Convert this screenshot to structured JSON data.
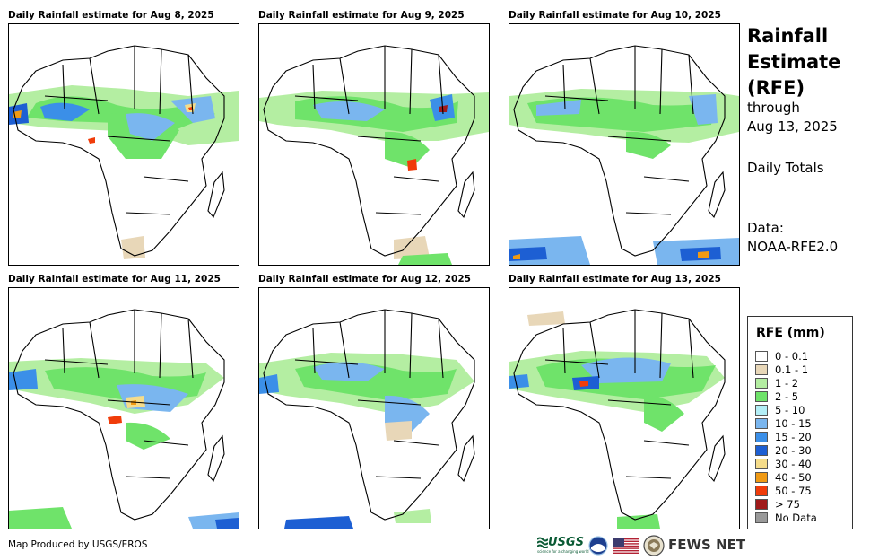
{
  "panels": [
    {
      "title": "Daily Rainfall estimate for Aug 8, 2025"
    },
    {
      "title": "Daily Rainfall estimate for Aug 9, 2025"
    },
    {
      "title": "Daily Rainfall estimate for Aug 10, 2025"
    },
    {
      "title": "Daily Rainfall estimate for Aug 11, 2025"
    },
    {
      "title": "Daily Rainfall estimate for Aug 12, 2025"
    },
    {
      "title": "Daily Rainfall estimate for Aug 13, 2025"
    }
  ],
  "sidebar": {
    "title_line1": "Rainfall",
    "title_line2": "Estimate",
    "title_line3": "(RFE)",
    "through_label": "through",
    "through_date": "Aug 13, 2025",
    "totals_label": "Daily Totals",
    "data_label": "Data:",
    "data_source": "NOAA-RFE2.0"
  },
  "legend": {
    "title": "RFE (mm)",
    "items": [
      {
        "label": "0 - 0.1",
        "color": "#ffffff"
      },
      {
        "label": "0.1 - 1",
        "color": "#e8d7b8"
      },
      {
        "label": "1 - 2",
        "color": "#b4eea2"
      },
      {
        "label": "2 - 5",
        "color": "#6fe36a"
      },
      {
        "label": "5 - 10",
        "color": "#b3eef6"
      },
      {
        "label": "10 - 15",
        "color": "#7ab6ef"
      },
      {
        "label": "15 - 20",
        "color": "#3b8fe8"
      },
      {
        "label": "20 - 30",
        "color": "#1d5fd3"
      },
      {
        "label": "30 - 40",
        "color": "#f5dc8a"
      },
      {
        "label": "40 - 50",
        "color": "#f09a14"
      },
      {
        "label": "50 - 75",
        "color": "#f03c0a"
      },
      {
        "label": "> 75",
        "color": "#a01a1a"
      },
      {
        "label": "No Data",
        "color": "#999999"
      }
    ]
  },
  "footer": {
    "credit": "Map Produced by USGS/EROS",
    "usgs_logo": "USGS",
    "usgs_tagline": "science for a changing world",
    "fews_logo": "FEWS NET"
  }
}
